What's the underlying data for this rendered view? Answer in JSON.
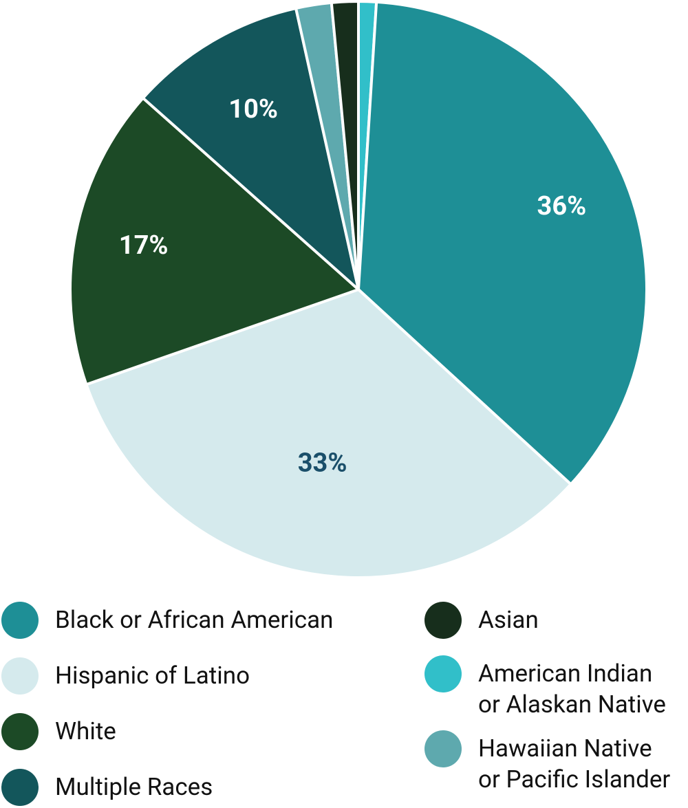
{
  "chart_data": {
    "type": "pie",
    "categories": [
      "American Indian\nor Alaskan Native",
      "Black or African American",
      "Hispanic of Latino",
      "White",
      "Multiple Races",
      "Hawaiian Native\nor Pacific Islander",
      "Asian"
    ],
    "values": [
      1,
      36,
      33,
      17,
      10,
      2,
      1.5
    ],
    "value_labels": [
      null,
      "36%",
      "33%",
      "17%",
      "10%",
      null,
      null
    ],
    "colors": [
      "#31bfc9",
      "#1e8f96",
      "#d5eaed",
      "#1c4a26",
      "#13565b",
      "#5ea9ae",
      "#172e1c"
    ]
  }
}
